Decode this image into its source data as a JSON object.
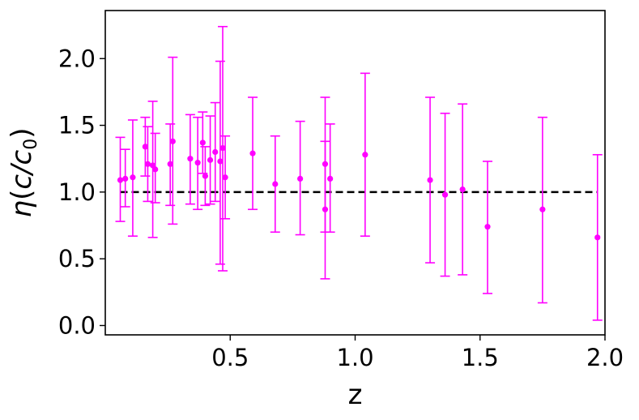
{
  "chart_data": {
    "type": "scatter",
    "xlabel": "z",
    "ylabel_parts": {
      "eta": "η",
      "open": "(",
      "c": "c",
      "slash": "/",
      "c0": "c",
      "sub": "0",
      "close": ")"
    },
    "xlim": [
      0.0,
      2.0
    ],
    "ylim": [
      -0.07,
      2.36
    ],
    "xticks": [
      {
        "value": 0.5,
        "label": "0.5"
      },
      {
        "value": 1.0,
        "label": "1.0"
      },
      {
        "value": 1.5,
        "label": "1.5"
      },
      {
        "value": 2.0,
        "label": "2.0"
      }
    ],
    "yticks": [
      {
        "value": 0.0,
        "label": "0.0"
      },
      {
        "value": 0.5,
        "label": "0.5"
      },
      {
        "value": 1.0,
        "label": "1.0"
      },
      {
        "value": 1.5,
        "label": "1.5"
      },
      {
        "value": 2.0,
        "label": "2.0"
      }
    ],
    "reference_line": {
      "y": 1.0,
      "x_start": 0.06,
      "x_end": 1.97,
      "style": "dashed",
      "color": "#000000"
    },
    "marker_color": "#ff00ff",
    "series": [
      {
        "points": [
          {
            "x": 0.06,
            "y": 1.09,
            "lo": 0.78,
            "hi": 1.41
          },
          {
            "x": 0.08,
            "y": 1.1,
            "lo": 0.89,
            "hi": 1.32
          },
          {
            "x": 0.11,
            "y": 1.11,
            "lo": 0.67,
            "hi": 1.54
          },
          {
            "x": 0.16,
            "y": 1.34,
            "lo": 1.12,
            "hi": 1.56
          },
          {
            "x": 0.17,
            "y": 1.21,
            "lo": 0.93,
            "hi": 1.49
          },
          {
            "x": 0.19,
            "y": 1.2,
            "lo": 0.66,
            "hi": 1.68
          },
          {
            "x": 0.2,
            "y": 1.17,
            "lo": 0.92,
            "hi": 1.44
          },
          {
            "x": 0.26,
            "y": 1.21,
            "lo": 0.9,
            "hi": 1.51
          },
          {
            "x": 0.27,
            "y": 1.38,
            "lo": 0.76,
            "hi": 2.01
          },
          {
            "x": 0.34,
            "y": 1.25,
            "lo": 0.91,
            "hi": 1.58
          },
          {
            "x": 0.37,
            "y": 1.22,
            "lo": 0.87,
            "hi": 1.56
          },
          {
            "x": 0.39,
            "y": 1.37,
            "lo": 1.14,
            "hi": 1.6
          },
          {
            "x": 0.4,
            "y": 1.12,
            "lo": 0.9,
            "hi": 1.34
          },
          {
            "x": 0.42,
            "y": 1.24,
            "lo": 0.91,
            "hi": 1.57
          },
          {
            "x": 0.44,
            "y": 1.3,
            "lo": 0.93,
            "hi": 1.67
          },
          {
            "x": 0.46,
            "y": 1.23,
            "lo": 0.46,
            "hi": 1.98
          },
          {
            "x": 0.47,
            "y": 1.33,
            "lo": 0.41,
            "hi": 2.24
          },
          {
            "x": 0.48,
            "y": 1.11,
            "lo": 0.8,
            "hi": 1.42
          },
          {
            "x": 0.59,
            "y": 1.29,
            "lo": 0.87,
            "hi": 1.71
          },
          {
            "x": 0.68,
            "y": 1.06,
            "lo": 0.7,
            "hi": 1.42
          },
          {
            "x": 0.78,
            "y": 1.1,
            "lo": 0.68,
            "hi": 1.53
          },
          {
            "x": 0.88,
            "y": 1.21,
            "lo": 0.7,
            "hi": 1.71
          },
          {
            "x": 0.88,
            "y": 0.87,
            "lo": 0.35,
            "hi": 1.38
          },
          {
            "x": 0.9,
            "y": 1.1,
            "lo": 0.7,
            "hi": 1.51
          },
          {
            "x": 1.04,
            "y": 1.28,
            "lo": 0.67,
            "hi": 1.89
          },
          {
            "x": 1.3,
            "y": 1.09,
            "lo": 0.47,
            "hi": 1.71
          },
          {
            "x": 1.36,
            "y": 0.98,
            "lo": 0.37,
            "hi": 1.59
          },
          {
            "x": 1.43,
            "y": 1.02,
            "lo": 0.38,
            "hi": 1.66
          },
          {
            "x": 1.53,
            "y": 0.74,
            "lo": 0.24,
            "hi": 1.23
          },
          {
            "x": 1.75,
            "y": 0.87,
            "lo": 0.17,
            "hi": 1.56
          },
          {
            "x": 1.97,
            "y": 0.66,
            "lo": 0.04,
            "hi": 1.28
          }
        ]
      }
    ],
    "grid": false,
    "legend": "none"
  }
}
